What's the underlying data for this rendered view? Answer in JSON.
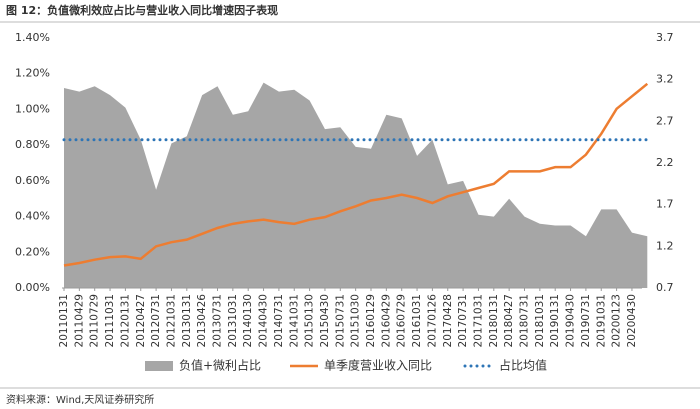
{
  "chart_data": {
    "type": "area-line",
    "title": "图 12：负值微利效应占比与营业收入同比增速因子表现",
    "source": "资料来源：Wind,天风证券研究所",
    "categories": [
      "20110131",
      "20110429",
      "20110729",
      "20111031",
      "20120131",
      "20120427",
      "20120731",
      "20121031",
      "20130131",
      "20130426",
      "20130731",
      "20131031",
      "20140130",
      "20140430",
      "20140731",
      "20141031",
      "20150130",
      "20150430",
      "20150731",
      "20151030",
      "20160129",
      "20160429",
      "20160729",
      "20161031",
      "20170126",
      "20170428",
      "20170731",
      "20171031",
      "20180131",
      "20180427",
      "20180731",
      "20181031",
      "20190131",
      "20190430",
      "20190731",
      "20191031",
      "20200123",
      "20200430",
      null
    ],
    "series": [
      {
        "name": "负值+微利占比",
        "kind": "area",
        "axis": "y",
        "color": "#a6a6a6",
        "values": [
          1.12,
          1.1,
          1.13,
          1.08,
          1.01,
          0.83,
          0.55,
          0.81,
          0.85,
          1.08,
          1.13,
          0.97,
          0.99,
          1.15,
          1.1,
          1.11,
          1.05,
          0.89,
          0.9,
          0.79,
          0.78,
          0.97,
          0.95,
          0.74,
          0.83,
          0.58,
          0.6,
          0.41,
          0.4,
          0.5,
          0.4,
          0.36,
          0.35,
          0.35,
          0.29,
          0.44,
          0.44,
          0.31,
          0.29
        ]
      },
      {
        "name": "单季度营业收入同比",
        "kind": "line",
        "axis": "y2",
        "color": "#ed7d31",
        "values": [
          0.97,
          1.0,
          1.04,
          1.07,
          1.08,
          1.05,
          1.2,
          1.25,
          1.28,
          1.35,
          1.42,
          1.47,
          1.5,
          1.52,
          1.49,
          1.47,
          1.52,
          1.55,
          1.62,
          1.68,
          1.75,
          1.78,
          1.82,
          1.78,
          1.72,
          1.8,
          1.85,
          1.9,
          1.95,
          2.1,
          2.1,
          2.1,
          2.15,
          2.15,
          2.3,
          2.55,
          2.85,
          3.0,
          3.15
        ]
      },
      {
        "name": "占比均值",
        "kind": "dotted",
        "axis": "y",
        "color": "#2e75b6",
        "values": [
          0.83,
          0.83,
          0.83,
          0.83,
          0.83,
          0.83,
          0.83,
          0.83,
          0.83,
          0.83,
          0.83,
          0.83,
          0.83,
          0.83,
          0.83,
          0.83,
          0.83,
          0.83,
          0.83,
          0.83,
          0.83,
          0.83,
          0.83,
          0.83,
          0.83,
          0.83,
          0.83,
          0.83,
          0.83,
          0.83,
          0.83,
          0.83,
          0.83,
          0.83,
          0.83,
          0.83,
          0.83,
          0.83,
          0.83
        ]
      }
    ],
    "ylim": [
      0,
      1.4
    ],
    "yticks": [
      {
        "value": 0,
        "label": "0.00%"
      },
      {
        "value": 0.2,
        "label": "0.20%"
      },
      {
        "value": 0.4,
        "label": "0.40%"
      },
      {
        "value": 0.6,
        "label": "0.60%"
      },
      {
        "value": 0.8,
        "label": "0.80%"
      },
      {
        "value": 1.0,
        "label": "1.00%"
      },
      {
        "value": 1.2,
        "label": "1.20%"
      },
      {
        "value": 1.4,
        "label": "1.40%"
      }
    ],
    "y2lim": [
      0.7,
      3.7
    ],
    "y2ticks": [
      0.7,
      1.2,
      1.7,
      2.2,
      2.7,
      3.2,
      3.7
    ]
  }
}
